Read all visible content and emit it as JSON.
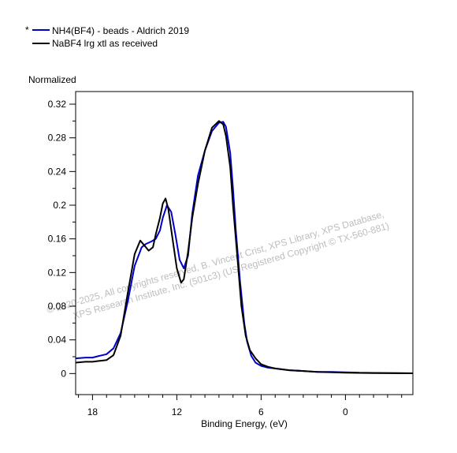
{
  "chart_data": {
    "type": "line",
    "xlabel": "Binding Energy, (eV)",
    "ylabel": "Normalized",
    "xlim": [
      19.2,
      -4.8
    ],
    "ylim": [
      -0.025,
      0.335
    ],
    "x_reversed": true,
    "x_ticks": [
      18,
      12,
      6,
      0
    ],
    "y_ticks": [
      0,
      0.04,
      0.08,
      0.12,
      0.16,
      0.2,
      0.24,
      0.28,
      0.32
    ],
    "x_tick_labels": [
      "18",
      "12",
      "6",
      "0"
    ],
    "y_tick_labels": [
      "0",
      "0.04",
      "0.08",
      "0.12",
      "0.16",
      "0.2",
      "0.24",
      "0.28",
      "0.32"
    ],
    "legend_position": "top-left, above plot",
    "grid": false,
    "series": [
      {
        "name": "NH4(BF4) - beads - Aldrich 2019",
        "marker": "*",
        "color": "#0000cc",
        "x": [
          19.2,
          18.5,
          18.0,
          17.5,
          17.0,
          16.5,
          16.0,
          15.5,
          15.0,
          14.5,
          14.2,
          13.8,
          13.5,
          13.2,
          13.0,
          12.7,
          12.4,
          12.1,
          11.8,
          11.5,
          11.2,
          10.9,
          10.5,
          10.0,
          9.5,
          9.0,
          8.7,
          8.5,
          8.2,
          8.0,
          7.8,
          7.5,
          7.2,
          7.0,
          6.7,
          6.4,
          6.0,
          5.5,
          5.0,
          4.0,
          3.0,
          2.0,
          1.0,
          0.0,
          -1.0,
          -2.0,
          -3.0,
          -4.0,
          -4.8
        ],
        "y": [
          0.018,
          0.019,
          0.019,
          0.021,
          0.023,
          0.03,
          0.048,
          0.085,
          0.128,
          0.15,
          0.154,
          0.157,
          0.16,
          0.17,
          0.185,
          0.2,
          0.192,
          0.165,
          0.135,
          0.125,
          0.14,
          0.19,
          0.235,
          0.265,
          0.288,
          0.298,
          0.299,
          0.293,
          0.262,
          0.22,
          0.17,
          0.11,
          0.06,
          0.038,
          0.021,
          0.013,
          0.009,
          0.007,
          0.006,
          0.004,
          0.003,
          0.002,
          0.002,
          0.0015,
          0.001,
          0.0008,
          0.0005,
          0.0004,
          0.0003
        ]
      },
      {
        "name": "NaBF4 lrg xtl as received",
        "color": "#000000",
        "x": [
          19.2,
          18.5,
          18.0,
          17.5,
          17.0,
          16.5,
          16.0,
          15.5,
          15.0,
          14.6,
          14.3,
          14.0,
          13.7,
          13.5,
          13.2,
          13.0,
          12.8,
          12.6,
          12.3,
          12.0,
          11.7,
          11.5,
          11.2,
          10.9,
          10.5,
          10.0,
          9.5,
          9.0,
          8.7,
          8.5,
          8.2,
          8.0,
          7.7,
          7.4,
          7.1,
          6.8,
          6.4,
          6.0,
          5.5,
          5.0,
          4.0,
          3.0,
          2.0,
          1.0,
          0.0,
          -1.0,
          -2.0,
          -3.0,
          -4.0,
          -4.8
        ],
        "y": [
          0.013,
          0.014,
          0.014,
          0.015,
          0.016,
          0.022,
          0.045,
          0.095,
          0.142,
          0.158,
          0.152,
          0.146,
          0.15,
          0.165,
          0.185,
          0.202,
          0.208,
          0.195,
          0.16,
          0.125,
          0.108,
          0.112,
          0.145,
          0.185,
          0.225,
          0.265,
          0.292,
          0.3,
          0.296,
          0.282,
          0.245,
          0.2,
          0.14,
          0.08,
          0.045,
          0.028,
          0.018,
          0.011,
          0.008,
          0.006,
          0.004,
          0.003,
          0.002,
          0.0015,
          0.001,
          0.0008,
          0.0006,
          0.0005,
          0.0004,
          0.0003
        ]
      }
    ]
  },
  "watermark": {
    "line1": "©  2020-2025,  All copyrights reserved,   B. Vincent Crist,  XPS Library, XPS Database,",
    "line2": "XPS Research Institute, Inc. (501c3)   (US Registered Copyright © TX-560-881)"
  }
}
